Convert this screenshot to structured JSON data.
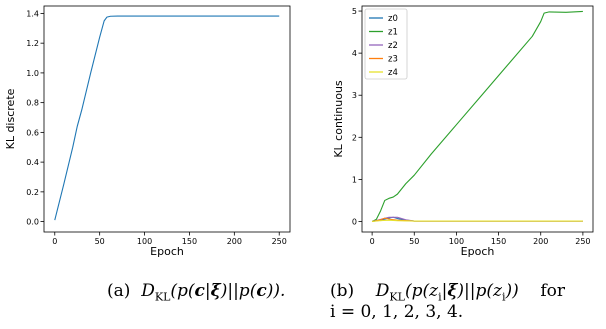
{
  "chart_data": [
    {
      "type": "line",
      "title": "",
      "xlabel": "Epoch",
      "ylabel": "KL discrete",
      "xlim": [
        -12,
        262
      ],
      "ylim": [
        -0.07,
        1.45
      ],
      "xticks": [
        0,
        50,
        100,
        150,
        200,
        250
      ],
      "yticks": [
        0.0,
        0.2,
        0.4,
        0.6,
        0.8,
        1.0,
        1.2,
        1.4
      ],
      "ytick_labels": [
        "0.0",
        "0.2",
        "0.4",
        "0.6",
        "0.8",
        "1.0",
        "1.2",
        "1.4"
      ],
      "grid": false,
      "series": [
        {
          "color": "#1f77b4",
          "points": [
            [
              0,
              0.01
            ],
            [
              10,
              0.25
            ],
            [
              20,
              0.5
            ],
            [
              25,
              0.64
            ],
            [
              30,
              0.75
            ],
            [
              40,
              1.0
            ],
            [
              50,
              1.24
            ],
            [
              55,
              1.35
            ],
            [
              58,
              1.375
            ],
            [
              62,
              1.381
            ],
            [
              70,
              1.382
            ],
            [
              100,
              1.382
            ],
            [
              150,
              1.382
            ],
            [
              200,
              1.382
            ],
            [
              250,
              1.382
            ]
          ]
        }
      ]
    },
    {
      "type": "line",
      "title": "",
      "xlabel": "Epoch",
      "ylabel": "KL continuous",
      "xlim": [
        -12,
        262
      ],
      "ylim": [
        -0.25,
        5.12
      ],
      "xticks": [
        0,
        50,
        100,
        150,
        200,
        250
      ],
      "yticks": [
        0,
        1,
        2,
        3,
        4,
        5
      ],
      "ytick_labels": [
        "0",
        "1",
        "2",
        "3",
        "4",
        "5"
      ],
      "grid": false,
      "legend": "top-left",
      "series": [
        {
          "name": "z0",
          "color": "#1f77b4",
          "points": [
            [
              0,
              0.0
            ],
            [
              10,
              0.03
            ],
            [
              20,
              0.08
            ],
            [
              25,
              0.1
            ],
            [
              30,
              0.07
            ],
            [
              40,
              0.03
            ],
            [
              50,
              0.01
            ],
            [
              100,
              0.01
            ],
            [
              150,
              0.01
            ],
            [
              200,
              0.01
            ],
            [
              250,
              0.01
            ]
          ]
        },
        {
          "name": "z1",
          "color": "#2ca02c",
          "points": [
            [
              0,
              0.0
            ],
            [
              5,
              0.05
            ],
            [
              10,
              0.25
            ],
            [
              15,
              0.5
            ],
            [
              20,
              0.55
            ],
            [
              25,
              0.58
            ],
            [
              30,
              0.65
            ],
            [
              40,
              0.9
            ],
            [
              50,
              1.1
            ],
            [
              70,
              1.6
            ],
            [
              100,
              2.3
            ],
            [
              130,
              3.0
            ],
            [
              160,
              3.7
            ],
            [
              190,
              4.4
            ],
            [
              200,
              4.75
            ],
            [
              204,
              4.95
            ],
            [
              210,
              4.98
            ],
            [
              230,
              4.97
            ],
            [
              250,
              4.99
            ]
          ]
        },
        {
          "name": "z2",
          "color": "#9467bd",
          "points": [
            [
              0,
              0.0
            ],
            [
              10,
              0.05
            ],
            [
              20,
              0.1
            ],
            [
              30,
              0.1
            ],
            [
              40,
              0.04
            ],
            [
              50,
              0.01
            ],
            [
              100,
              0.01
            ],
            [
              150,
              0.01
            ],
            [
              200,
              0.01
            ],
            [
              250,
              0.01
            ]
          ]
        },
        {
          "name": "z3",
          "color": "#ff7f0e",
          "points": [
            [
              0,
              0.0
            ],
            [
              10,
              0.04
            ],
            [
              15,
              0.08
            ],
            [
              22,
              0.05
            ],
            [
              30,
              0.03
            ],
            [
              50,
              0.01
            ],
            [
              100,
              0.01
            ],
            [
              150,
              0.01
            ],
            [
              200,
              0.01
            ],
            [
              250,
              0.01
            ]
          ]
        },
        {
          "name": "z4",
          "color": "#e6e22e",
          "points": [
            [
              0,
              0.0
            ],
            [
              10,
              0.02
            ],
            [
              20,
              0.03
            ],
            [
              30,
              0.02
            ],
            [
              50,
              0.01
            ],
            [
              100,
              0.01
            ],
            [
              150,
              0.01
            ],
            [
              200,
              0.01
            ],
            [
              250,
              0.01
            ]
          ]
        }
      ]
    }
  ],
  "captions": {
    "a_prefix": "(a)",
    "b_prefix": "(b)",
    "b_suffix": "for",
    "b_line2": "i = 0, 1, 2, 3, 4."
  }
}
